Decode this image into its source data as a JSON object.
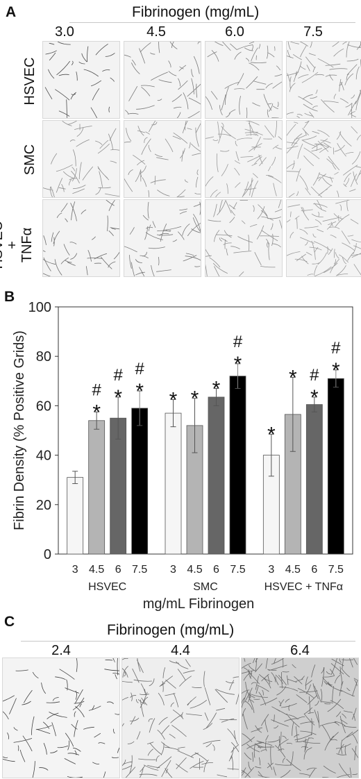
{
  "panel_a": {
    "letter": "A",
    "header": "Fibrinogen (mg/mL)",
    "columns": [
      "3.0",
      "4.5",
      "6.0",
      "7.5"
    ],
    "rows": [
      "HSVEC",
      "SMC",
      "HSVEC + TNFα"
    ],
    "row_lines": [
      [
        "HSVEC"
      ],
      [
        "SMC"
      ],
      [
        "HSVEC",
        "+",
        "TNFα"
      ]
    ]
  },
  "panel_b": {
    "letter": "B"
  },
  "panel_c": {
    "letter": "C",
    "header": "Fibrinogen (mg/mL)",
    "columns": [
      "2.4",
      "4.4",
      "6.4"
    ]
  },
  "chart_data": {
    "type": "bar",
    "ylabel": "Fibrin Density (% Positive Grids)",
    "xlabel": "mg/mL Fibrinogen",
    "ylim": [
      0,
      100
    ],
    "yticks": [
      0,
      20,
      40,
      60,
      80,
      100
    ],
    "groups": [
      {
        "name": "HSVEC",
        "bars": [
          {
            "x": "3",
            "value": 31,
            "error": 2.5,
            "marks": ""
          },
          {
            "x": "4.5",
            "value": 54,
            "error": 3.5,
            "marks": "#*"
          },
          {
            "x": "6",
            "value": 55,
            "error": 8.5,
            "marks": "#*"
          },
          {
            "x": "7.5",
            "value": 59,
            "error": 7,
            "marks": "#*"
          }
        ]
      },
      {
        "name": "SMC",
        "bars": [
          {
            "x": "3",
            "value": 57,
            "error": 5.5,
            "marks": "*"
          },
          {
            "x": "4.5",
            "value": 52,
            "error": 11,
            "marks": "*"
          },
          {
            "x": "6",
            "value": 63.5,
            "error": 3.5,
            "marks": "*"
          },
          {
            "x": "7.5",
            "value": 72,
            "error": 5,
            "marks": "#*"
          }
        ]
      },
      {
        "name": "HSVEC + TNFα",
        "bars": [
          {
            "x": "3",
            "value": 40,
            "error": 8.5,
            "marks": "*"
          },
          {
            "x": "4.5",
            "value": 56.5,
            "error": 15,
            "marks": "*"
          },
          {
            "x": "6",
            "value": 60.5,
            "error": 3,
            "marks": "#*"
          },
          {
            "x": "7.5",
            "value": 71,
            "error": 3.5,
            "marks": "#*"
          }
        ]
      }
    ],
    "bar_colors": [
      "#f6f6f6",
      "#b4b4b4",
      "#666666",
      "#000000"
    ]
  }
}
